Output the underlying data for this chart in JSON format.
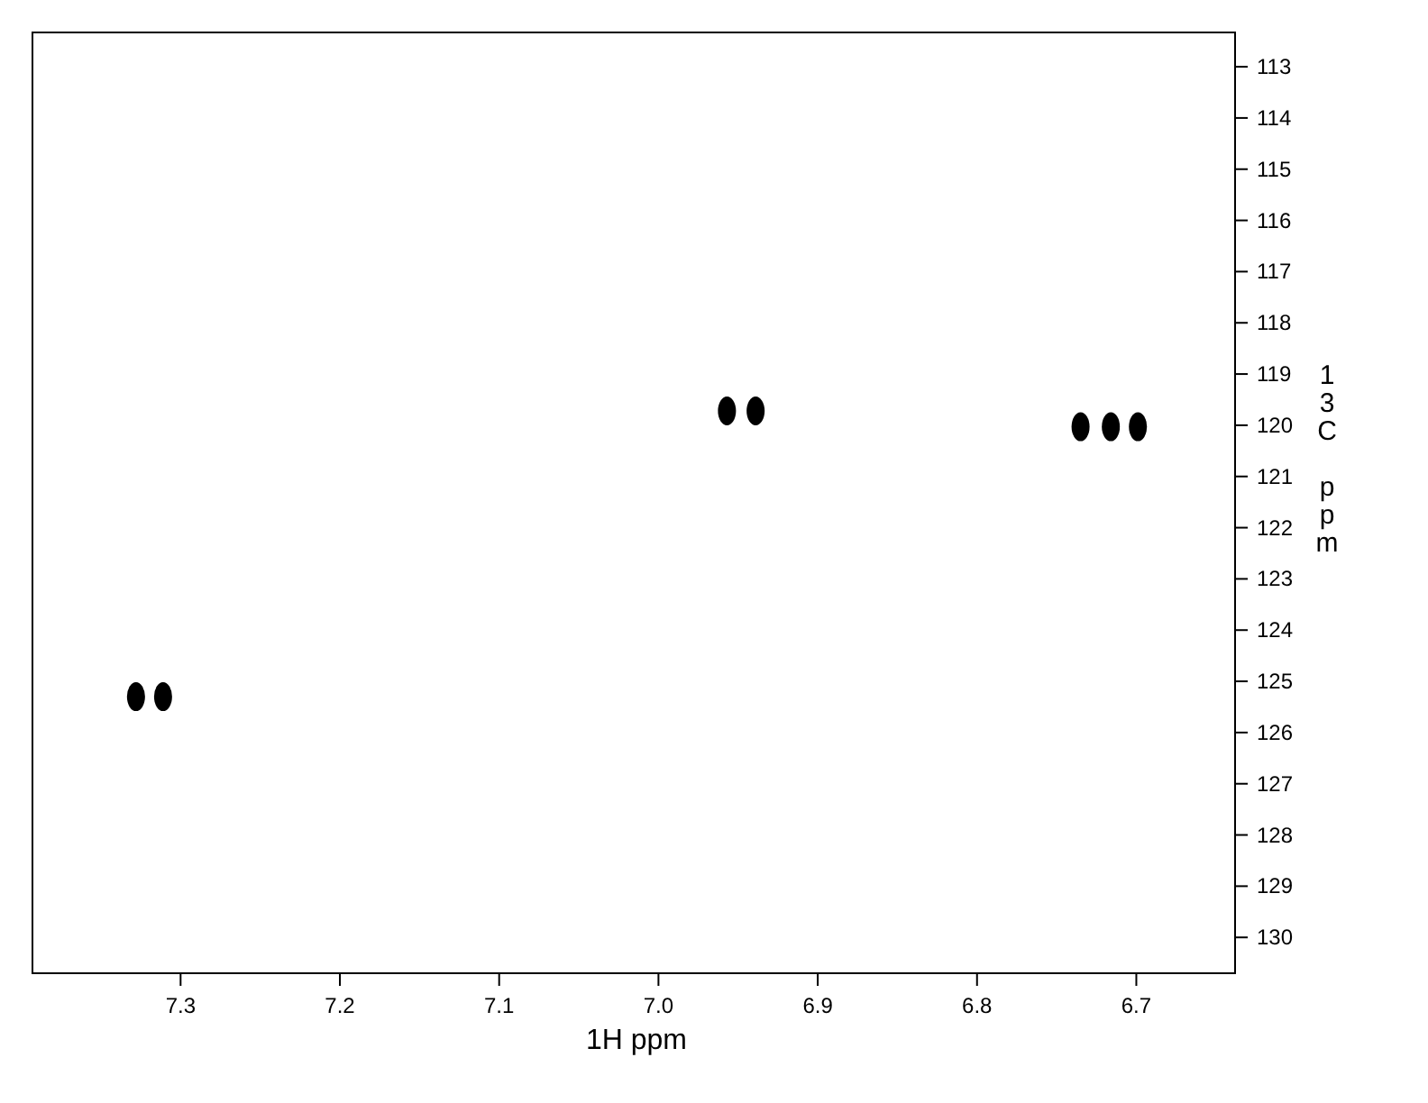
{
  "chart_data": {
    "type": "scatter",
    "xlabel": "1H ppm",
    "ylabel": "13C ppm",
    "x": [
      7.328,
      7.311,
      6.957,
      6.939,
      6.735,
      6.716,
      6.699
    ],
    "series": [
      {
        "color": "#000000",
        "values": [
          125.3,
          125.3,
          119.72,
          119.72,
          120.03,
          120.03,
          120.03
        ]
      }
    ],
    "xlim": [
      7.393,
      6.638
    ],
    "ylim": [
      130.7,
      112.33
    ],
    "xticks": [
      7.3,
      7.2,
      7.1,
      {
        "value": 7,
        "label": "7.0"
      },
      6.9,
      6.8,
      6.7
    ],
    "yticks": [
      113,
      114,
      115,
      116,
      117,
      118,
      119,
      120,
      121,
      122,
      123,
      124,
      125,
      126,
      127,
      128,
      129,
      130
    ],
    "marker": "circle",
    "grid": false
  }
}
